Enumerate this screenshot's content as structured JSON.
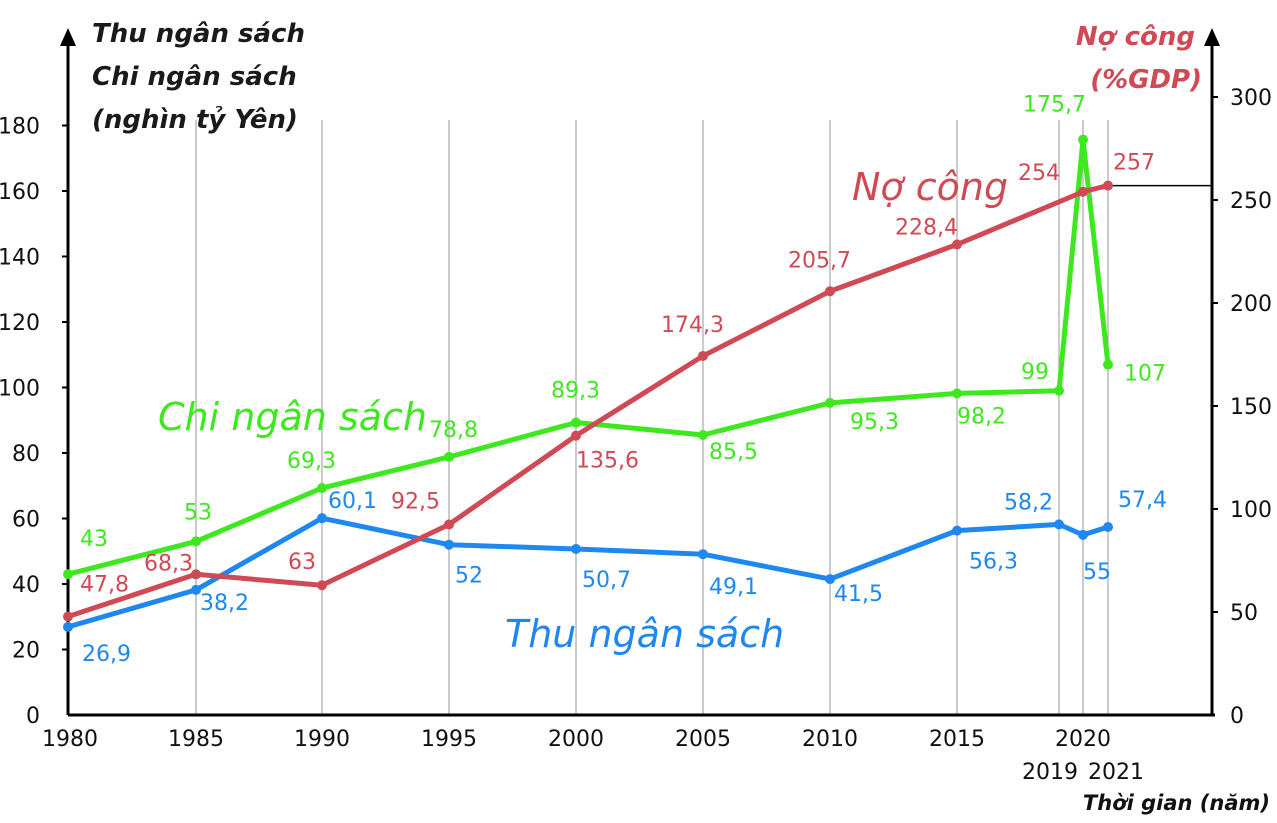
{
  "chart_data": {
    "type": "line",
    "left_axis_title": [
      "Thu ngân sách",
      "Chi ngân sách",
      "(nghìn tỷ Yên)"
    ],
    "right_axis_title": [
      "Nợ công",
      "(%GDP)"
    ],
    "xlabel": "Thời gian (năm)",
    "x": [
      1980,
      1985,
      1990,
      1995,
      2000,
      2005,
      2010,
      2015,
      2019,
      2020,
      2021
    ],
    "x_tick_labels": [
      "1980",
      "1985",
      "1990",
      "1995",
      "2000",
      "2005",
      "2010",
      "2015",
      "2019",
      "2020",
      "2021"
    ],
    "left_ylim": [
      0,
      190
    ],
    "left_ticks": [
      "0",
      "20",
      "40",
      "60",
      "80",
      "100",
      "120",
      "140",
      "160",
      "180"
    ],
    "right_ylim": [
      0,
      300
    ],
    "right_ticks": [
      "0",
      "50",
      "100",
      "150",
      "200",
      "250",
      "300"
    ],
    "series": [
      {
        "name": "Chi ngân sách",
        "axis": "left",
        "color": "#3ee81e",
        "values": [
          43,
          53,
          69.3,
          78.8,
          89.3,
          85.5,
          95.3,
          98.2,
          99,
          175.7,
          107
        ],
        "labels": [
          "43",
          "53",
          "69,3",
          "78,8",
          "89,3",
          "85,5",
          "95,3",
          "98,2",
          "99",
          "175,7",
          "107"
        ]
      },
      {
        "name": "Thu ngân sách",
        "axis": "left",
        "color": "#1e88f0",
        "values": [
          26.9,
          38.2,
          60.1,
          52,
          50.7,
          49.1,
          41.5,
          56.3,
          58.2,
          55,
          57.4
        ],
        "labels": [
          "26,9",
          "38,2",
          "60,1",
          "52",
          "50,7",
          "49,1",
          "41,5",
          "56,3",
          "58,2",
          "55",
          "57,4"
        ]
      },
      {
        "name": "Nợ công",
        "axis": "right",
        "color": "#cf4a55",
        "x": [
          1980,
          1985,
          1990,
          1995,
          2000,
          2005,
          2010,
          2015,
          2020,
          2021
        ],
        "values": [
          47.8,
          68.3,
          63,
          92.5,
          135.6,
          174.3,
          205.7,
          228.4,
          254,
          257
        ],
        "labels": [
          "47,8",
          "68,3",
          "63",
          "92,5",
          "135,6",
          "174,3",
          "205,7",
          "228,4",
          "254",
          "257"
        ]
      }
    ]
  }
}
